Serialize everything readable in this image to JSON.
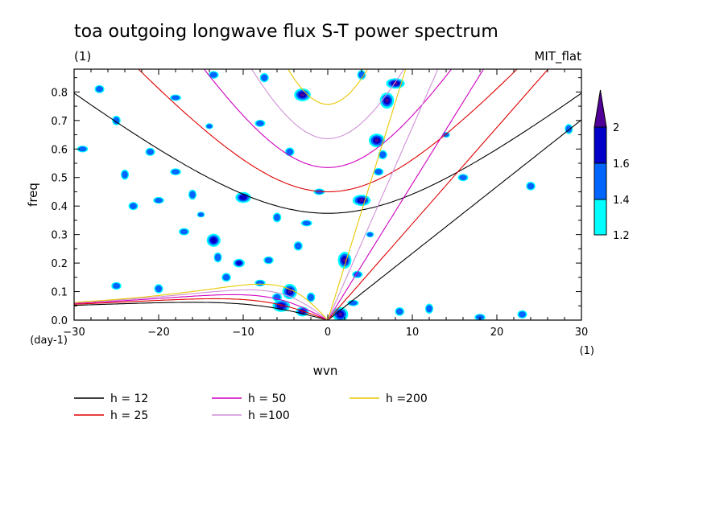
{
  "chart_data": {
    "type": "heatmap",
    "title": "toa outgoing longwave flux S-T power spectrum",
    "subtitle_left": "(1)",
    "subtitle_right": "MIT_flat",
    "xlabel": "wvn",
    "ylabel": "freq",
    "x_unit": "(1)",
    "y_unit": "(day-1)",
    "xlim": [
      -30,
      30
    ],
    "ylim": [
      0,
      0.88
    ],
    "x_ticks": [
      "−30",
      "−20",
      "−10",
      "0",
      "10",
      "20",
      "30"
    ],
    "y_ticks": [
      "0.0",
      "0.1",
      "0.2",
      "0.3",
      "0.4",
      "0.5",
      "0.6",
      "0.7",
      "0.8"
    ],
    "colorbar": {
      "levels": [
        "1.2",
        "1.4",
        "1.6",
        "2"
      ],
      "colors": [
        "#00ffff",
        "#0064ff",
        "#0000c8",
        "#500096"
      ]
    },
    "dispersion_curves": [
      {
        "label": "h = 12",
        "h": 12,
        "color": "#000000"
      },
      {
        "label": "h = 25",
        "h": 25,
        "color": "#e00000"
      },
      {
        "label": "h = 50",
        "h": 50,
        "color": "#d000c0"
      },
      {
        "label": "h =100",
        "h": 100,
        "color": "#d090d8"
      },
      {
        "label": "h =200",
        "h": 200,
        "color": "#e8c800"
      }
    ],
    "blobs": [
      {
        "x": -3.0,
        "y": 0.03,
        "level": 3
      },
      {
        "x": -5.5,
        "y": 0.05,
        "level": 3
      },
      {
        "x": 1.5,
        "y": 0.02,
        "level": 3
      },
      {
        "x": 2.0,
        "y": 0.21,
        "level": 3
      },
      {
        "x": 4.0,
        "y": 0.42,
        "level": 3
      },
      {
        "x": 5.8,
        "y": 0.63,
        "level": 3
      },
      {
        "x": 7.0,
        "y": 0.77,
        "level": 3
      },
      {
        "x": 8.0,
        "y": 0.83,
        "level": 3
      },
      {
        "x": -3.0,
        "y": 0.79,
        "level": 3
      },
      {
        "x": -4.5,
        "y": 0.1,
        "level": 3
      },
      {
        "x": -10.5,
        "y": 0.2,
        "level": 2
      },
      {
        "x": -10.0,
        "y": 0.43,
        "level": 2
      },
      {
        "x": -13.5,
        "y": 0.28,
        "level": 2
      },
      {
        "x": -13.0,
        "y": 0.22,
        "level": 1
      },
      {
        "x": -8.0,
        "y": 0.13,
        "level": 1
      },
      {
        "x": -6.0,
        "y": 0.08,
        "level": 1
      },
      {
        "x": -2.0,
        "y": 0.08,
        "level": 1
      },
      {
        "x": 3.0,
        "y": 0.06,
        "level": 1
      },
      {
        "x": 6.0,
        "y": 0.52,
        "level": 1
      },
      {
        "x": 6.5,
        "y": 0.58,
        "level": 1
      },
      {
        "x": -15.0,
        "y": 0.37,
        "level": 1
      },
      {
        "x": -17.0,
        "y": 0.31,
        "level": 1
      },
      {
        "x": -12.0,
        "y": 0.15,
        "level": 1
      },
      {
        "x": -24.0,
        "y": 0.51,
        "level": 1
      },
      {
        "x": -18.0,
        "y": 0.52,
        "level": 1
      },
      {
        "x": -21.0,
        "y": 0.59,
        "level": 1
      },
      {
        "x": -25.0,
        "y": 0.7,
        "level": 1
      },
      {
        "x": -18.0,
        "y": 0.78,
        "level": 1
      },
      {
        "x": -13.5,
        "y": 0.86,
        "level": 1
      },
      {
        "x": -7.5,
        "y": 0.85,
        "level": 1
      },
      {
        "x": -14.0,
        "y": 0.68,
        "level": 1
      },
      {
        "x": -8.0,
        "y": 0.69,
        "level": 1
      },
      {
        "x": -4.5,
        "y": 0.59,
        "level": 1
      },
      {
        "x": -16.0,
        "y": 0.44,
        "level": 1
      },
      {
        "x": -20.0,
        "y": 0.42,
        "level": 1
      },
      {
        "x": -23.0,
        "y": 0.4,
        "level": 1
      },
      {
        "x": 4.0,
        "y": 0.86,
        "level": 1
      },
      {
        "x": -1.0,
        "y": 0.45,
        "level": 1
      },
      {
        "x": -7.0,
        "y": 0.21,
        "level": 1
      },
      {
        "x": -3.5,
        "y": 0.26,
        "level": 1
      },
      {
        "x": 14.0,
        "y": 0.65,
        "level": 1
      },
      {
        "x": 16.0,
        "y": 0.5,
        "level": 1
      },
      {
        "x": 24.0,
        "y": 0.47,
        "level": 1
      },
      {
        "x": 28.5,
        "y": 0.67,
        "level": 1
      },
      {
        "x": -29.0,
        "y": 0.6,
        "level": 1
      },
      {
        "x": -27.0,
        "y": 0.81,
        "level": 1
      },
      {
        "x": -6.0,
        "y": 0.36,
        "level": 1
      },
      {
        "x": -2.5,
        "y": 0.34,
        "level": 1
      },
      {
        "x": -25.0,
        "y": 0.12,
        "level": 1
      },
      {
        "x": -20.0,
        "y": 0.11,
        "level": 1
      },
      {
        "x": 5.0,
        "y": 0.3,
        "level": 1
      },
      {
        "x": 3.5,
        "y": 0.16,
        "level": 1
      },
      {
        "x": 8.5,
        "y": 0.03,
        "level": 1
      },
      {
        "x": 12.0,
        "y": 0.04,
        "level": 1
      },
      {
        "x": 18.0,
        "y": 0.01,
        "level": 1
      },
      {
        "x": 23.0,
        "y": 0.02,
        "level": 1
      }
    ]
  }
}
